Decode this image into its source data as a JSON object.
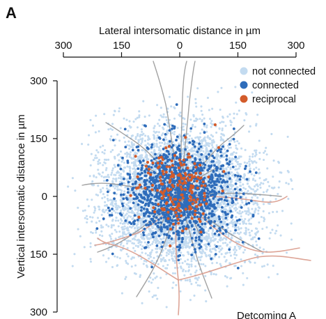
{
  "panel_label": "A",
  "chart_data": {
    "type": "scatter",
    "title": "",
    "xlabel": "Lateral intersomatic distance in µm",
    "ylabel": "Vertical intersomatic distance in µm",
    "x_axis_position": "top",
    "y_axis_position": "left",
    "y_inverted": true,
    "xlim": [
      -300,
      300
    ],
    "ylim": [
      0,
      300
    ],
    "x_ticks": [
      -300,
      -150,
      0,
      150,
      300
    ],
    "x_tick_labels": [
      "300",
      "150",
      "0",
      "150",
      "300"
    ],
    "y_ticks": [
      300,
      150,
      0,
      150,
      300
    ],
    "y_tick_labels": [
      "300",
      "150",
      "0",
      "150",
      "300"
    ],
    "grid": false,
    "legend_position": "top-right",
    "legend": [
      "not connected",
      "connected",
      "reciprocal"
    ],
    "series": [
      {
        "name": "not connected",
        "color": "#c3dbf0",
        "count_estimate": 5200,
        "spread": {
          "x_center": 0,
          "y_center": 0,
          "x_range": [
            -300,
            300
          ],
          "y_range": [
            -300,
            300
          ]
        }
      },
      {
        "name": "connected",
        "color": "#2e6cba",
        "count_estimate": 1300,
        "spread": {
          "x_center": 0,
          "y_center": 20,
          "x_range": [
            -220,
            220
          ],
          "y_range": [
            -220,
            250
          ]
        }
      },
      {
        "name": "reciprocal",
        "color": "#d35b2a",
        "count_estimate": 180,
        "spread": {
          "x_center": 0,
          "y_center": 10,
          "x_range": [
            -140,
            140
          ],
          "y_range": [
            -160,
            180
          ]
        }
      }
    ],
    "overlays": [
      {
        "name": "dendrites-gray",
        "color": "#8d8d8d"
      },
      {
        "name": "axon-pink",
        "color": "#d99a8b"
      }
    ],
    "footer_text_partial": "Detcoming A"
  }
}
